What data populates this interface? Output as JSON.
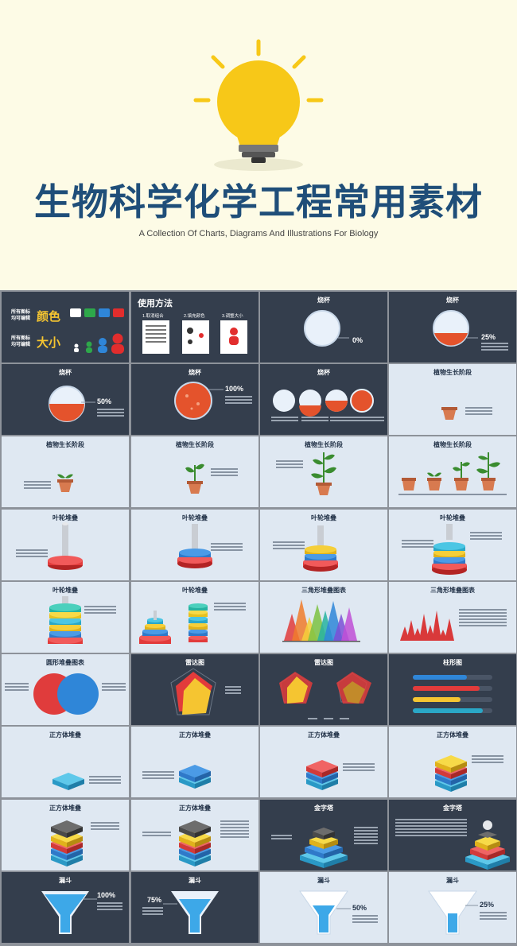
{
  "hero": {
    "title": "生物科学化学工程常用素材",
    "subtitle": "A Collection  Of Charts, Diagrams And Illustrations For Biology"
  },
  "tiles": {
    "t1": {
      "line1": "所有图标",
      "line2": "均可编辑",
      "color_word": "颜色",
      "line3": "所有图标",
      "line4": "均可编辑",
      "size_word": "大小"
    },
    "t2": {
      "title": "使用方法",
      "step1": "1.取消组合",
      "step2": "2.填充颜色",
      "step3": "3.调整大小"
    },
    "t3": {
      "title": "烧杯",
      "value": "0%"
    },
    "t4": {
      "title": "烧杯",
      "value": "25%"
    },
    "t5": {
      "title": "烧杯",
      "value": "50%"
    },
    "t6": {
      "title": "烧杯",
      "value": "100%"
    },
    "t7": {
      "title": "烧杯"
    },
    "t8": {
      "title": "植物生长阶段"
    },
    "t9": {
      "title": "植物生长阶段"
    },
    "t10": {
      "title": "植物生长阶段"
    },
    "t11": {
      "title": "植物生长阶段"
    },
    "t12": {
      "title": "植物生长阶段"
    },
    "t13": {
      "title": "叶轮堆叠"
    },
    "t14": {
      "title": "叶轮堆叠"
    },
    "t15": {
      "title": "叶轮堆叠"
    },
    "t16": {
      "title": "叶轮堆叠"
    },
    "t17": {
      "title": "叶轮堆叠"
    },
    "t18": {
      "title": "叶轮堆叠"
    },
    "t19": {
      "title": "三角形堆叠图表"
    },
    "t20": {
      "title": "三角形堆叠图表"
    },
    "t21": {
      "title": "圆形堆叠图表"
    },
    "t22": {
      "title": "雷达图"
    },
    "t23": {
      "title": "雷达图"
    },
    "t24": {
      "title": "柱形图"
    },
    "t25": {
      "title": "正方体堆叠"
    },
    "t26": {
      "title": "正方体堆叠"
    },
    "t27": {
      "title": "正方体堆叠"
    },
    "t28": {
      "title": "正方体堆叠"
    },
    "t29": {
      "title": "正方体堆叠"
    },
    "t30": {
      "title": "正方体堆叠"
    },
    "t31": {
      "title": "金字塔"
    },
    "t32": {
      "title": "金字塔"
    },
    "t33": {
      "title": "漏斗",
      "value": "100%"
    },
    "t34": {
      "title": "漏斗",
      "value": "75%"
    },
    "t35": {
      "title": "漏斗",
      "value": "50%"
    },
    "t36": {
      "title": "漏斗",
      "value": "25%"
    }
  },
  "colors": {
    "bulb": "#f7c818",
    "title": "#1f4e79",
    "dark_tile": "#343e4d",
    "light_tile": "#dfe8f2",
    "beaker_fill": "#e4532c"
  }
}
